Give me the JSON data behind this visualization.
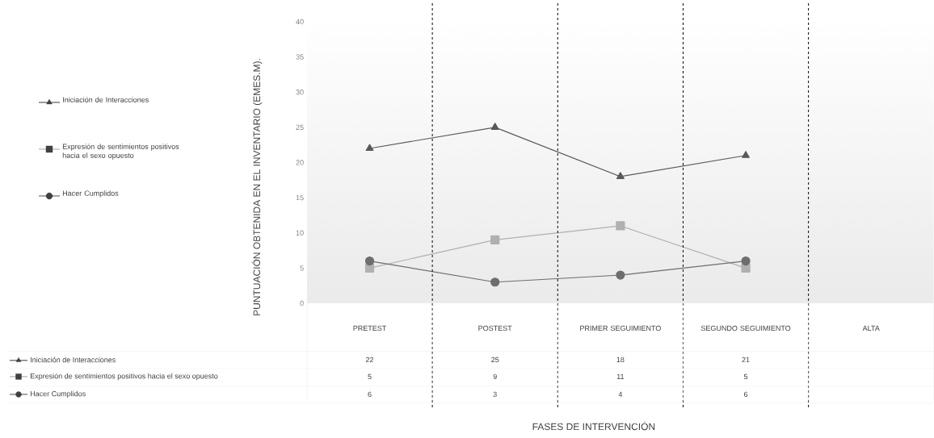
{
  "chart_data": {
    "type": "line",
    "ylabel": "PUNTUACIÓN OBTENIDA  EN EL INVENTARIO (EMES.M).",
    "categories": [
      "PRETEST",
      "POSTEST",
      "PRIMER SEGUIMIENTO",
      "SEGUNDO SEGUIMIENTO",
      "ALTA"
    ],
    "series": [
      {
        "name": "Iniciación de Interacciones",
        "color": "#595959",
        "marker": "triangle",
        "values": [
          22,
          25,
          18,
          21,
          null
        ]
      },
      {
        "name": "Expresión de sentimientos positivos hacia el sexo opuesto",
        "color": "#b0b0b0",
        "marker": "square",
        "values": [
          5,
          9,
          11,
          5,
          null
        ]
      },
      {
        "name": "Hacer Cumplidos",
        "color": "#6e6e6e",
        "marker": "circle",
        "values": [
          6,
          3,
          4,
          6,
          null
        ]
      }
    ],
    "ylim": [
      0,
      40
    ],
    "yticks": [
      0,
      5,
      10,
      15,
      20,
      25,
      30,
      35,
      40
    ],
    "annotations": [
      "FASES DE INTERVENCIÓN"
    ],
    "legend": "left",
    "data_labels": true,
    "grid": false
  }
}
